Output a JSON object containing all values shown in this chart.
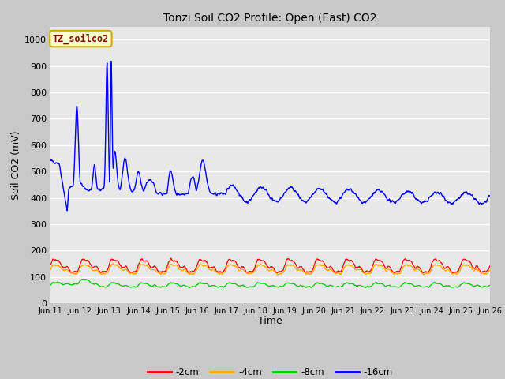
{
  "title": "Tonzi Soil CO2 Profile: Open (East) CO2",
  "ylabel": "Soil CO2 (mV)",
  "xlabel": "Time",
  "label_text": "TZ_soilco2",
  "legend_labels": [
    "-2cm",
    "-4cm",
    "-8cm",
    "-16cm"
  ],
  "legend_colors": [
    "#ff0000",
    "#ffaa00",
    "#00cc00",
    "#0000ff"
  ],
  "bg_color": "#e8e8e8",
  "fig_bg_color": "#c8c8c8",
  "ylim": [
    0,
    1050
  ],
  "yticks": [
    0,
    100,
    200,
    300,
    400,
    500,
    600,
    700,
    800,
    900,
    1000
  ],
  "xtick_labels": [
    "Jun 11",
    "Jun 12",
    "Jun 13",
    "Jun 14",
    "Jun 15",
    "Jun 16",
    "Jun 17",
    "Jun 18",
    "Jun 19",
    "Jun 20",
    "Jun 21",
    "Jun 22",
    "Jun 23",
    "Jun 24",
    "Jun 25",
    "Jun 26"
  ],
  "n_points": 1500,
  "seed": 42
}
